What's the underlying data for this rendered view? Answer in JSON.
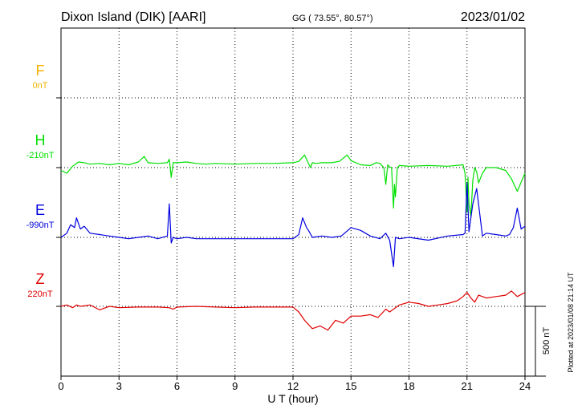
{
  "header": {
    "station": "Dixon Island (DIK)  [AARI]",
    "coords": "GG ( 73.55°,  80.57°)",
    "date": "2023/01/02"
  },
  "footer": {
    "plotted": "Plotted at 2023/01/08 21:14 UT"
  },
  "chart_data": {
    "type": "line",
    "title": "",
    "xlabel": "U T (hour)",
    "ylabel": "",
    "xlim": [
      0,
      24
    ],
    "x_ticks": [
      0,
      3,
      6,
      9,
      12,
      15,
      18,
      21,
      24
    ],
    "grid": true,
    "scale_bar": {
      "label": "500 nT",
      "value_nT": 500
    },
    "colors": {
      "F": "#f2b300",
      "H": "#00e000",
      "E": "#0000e0",
      "Z": "#e00000"
    },
    "series": [
      {
        "name": "F",
        "baseline_label": "0nT",
        "color": "#f2b300",
        "x": [],
        "y": []
      },
      {
        "name": "H",
        "baseline_label": "-210nT",
        "color": "#00e000",
        "x": [
          0,
          0.3,
          0.6,
          0.9,
          1.2,
          1.5,
          2.0,
          2.5,
          3.0,
          3.5,
          4.0,
          4.3,
          4.5,
          5.0,
          5.5,
          5.6,
          5.7,
          5.8,
          6.0,
          6.5,
          7.0,
          7.5,
          8.0,
          9.0,
          10.0,
          11.0,
          12.0,
          12.3,
          12.6,
          12.8,
          12.9,
          13.0,
          13.2,
          13.5,
          14.0,
          14.4,
          14.8,
          15.0,
          15.5,
          16.0,
          16.3,
          16.5,
          16.7,
          16.8,
          16.9,
          17.0,
          17.1,
          17.2,
          17.25,
          17.3,
          17.4,
          17.5,
          18.0,
          19.0,
          20.0,
          20.8,
          20.9,
          21.0,
          21.05,
          21.1,
          21.2,
          21.3,
          21.4,
          21.5,
          21.6,
          21.8,
          22.0,
          22.5,
          23.0,
          23.3,
          23.6,
          24.0
        ],
        "y": [
          -230,
          -250,
          -200,
          -170,
          -175,
          -185,
          -180,
          -190,
          -180,
          -190,
          -170,
          -130,
          -175,
          -180,
          -175,
          -150,
          -280,
          -175,
          -175,
          -170,
          -180,
          -185,
          -180,
          -185,
          -180,
          -180,
          -175,
          -165,
          -120,
          -180,
          -210,
          -175,
          -180,
          -175,
          -175,
          -165,
          -120,
          -160,
          -190,
          -195,
          -175,
          -180,
          -210,
          -330,
          -190,
          -205,
          -210,
          -500,
          -330,
          -420,
          -210,
          -195,
          -200,
          -195,
          -200,
          -190,
          -250,
          -530,
          -280,
          -470,
          -560,
          -300,
          -210,
          -240,
          -320,
          -250,
          -210,
          -210,
          -230,
          -290,
          -380,
          -250
        ]
      },
      {
        "name": "E",
        "baseline_label": "-990nT",
        "color": "#0000e0",
        "x": [
          0,
          0.3,
          0.5,
          0.7,
          0.8,
          1.0,
          1.2,
          1.5,
          2.0,
          2.5,
          3.0,
          3.5,
          4.0,
          4.5,
          5.0,
          5.5,
          5.6,
          5.7,
          5.8,
          6.0,
          6.5,
          7.0,
          8.0,
          9.0,
          10.0,
          11.0,
          12.0,
          12.3,
          12.5,
          12.7,
          12.8,
          13.0,
          13.5,
          14.0,
          14.5,
          15.0,
          15.5,
          16.0,
          16.5,
          16.8,
          17.0,
          17.2,
          17.3,
          17.5,
          18.0,
          19.0,
          20.0,
          20.8,
          20.9,
          21.0,
          21.1,
          21.3,
          21.5,
          21.8,
          22.0,
          22.5,
          23.0,
          23.2,
          23.4,
          23.6,
          23.8,
          24.0
        ],
        "y": [
          -990,
          -960,
          -900,
          -920,
          -850,
          -930,
          -910,
          -960,
          -970,
          -980,
          -990,
          -1000,
          -990,
          -980,
          -1000,
          -980,
          -750,
          -1030,
          -990,
          -1000,
          -990,
          -1000,
          -1000,
          -1000,
          -1000,
          -1000,
          -1000,
          -970,
          -850,
          -920,
          -940,
          -990,
          -980,
          -990,
          -980,
          -920,
          -940,
          -980,
          -1000,
          -960,
          -1010,
          -1200,
          -990,
          -1000,
          -990,
          -1010,
          -980,
          -970,
          -960,
          -600,
          -950,
          -750,
          -640,
          -980,
          -960,
          -970,
          -980,
          -970,
          -920,
          -780,
          -930,
          -910
        ]
      },
      {
        "name": "Z",
        "baseline_label": "220nT",
        "color": "#e00000",
        "x": [
          0,
          0.3,
          0.6,
          0.8,
          1.0,
          1.5,
          2.0,
          2.5,
          3.0,
          4.0,
          5.0,
          5.6,
          5.8,
          6.0,
          7.0,
          8.0,
          9.0,
          10.0,
          11.0,
          12.0,
          12.3,
          12.6,
          13.0,
          13.4,
          13.8,
          14.2,
          14.6,
          15.0,
          15.5,
          16.0,
          16.4,
          16.8,
          17.0,
          17.5,
          18.0,
          18.5,
          19.0,
          19.5,
          20.0,
          20.5,
          20.8,
          21.0,
          21.2,
          21.4,
          21.6,
          22.0,
          22.5,
          23.0,
          23.3,
          23.6,
          24.0
        ],
        "y": [
          220,
          230,
          210,
          230,
          220,
          230,
          195,
          220,
          210,
          215,
          215,
          210,
          200,
          215,
          220,
          215,
          210,
          215,
          215,
          215,
          180,
          120,
          60,
          80,
          50,
          120,
          100,
          150,
          150,
          160,
          140,
          200,
          180,
          230,
          250,
          240,
          220,
          230,
          240,
          260,
          290,
          320,
          280,
          250,
          300,
          280,
          290,
          300,
          330,
          290,
          320
        ]
      }
    ]
  }
}
